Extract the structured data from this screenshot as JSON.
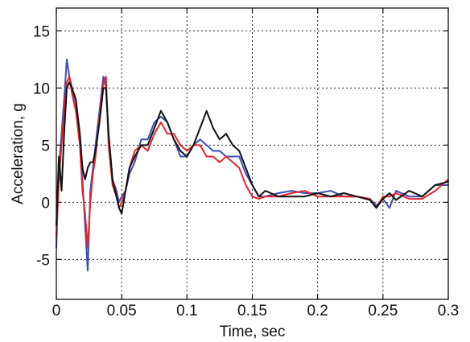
{
  "chart_data": {
    "type": "line",
    "title": "",
    "xlabel": "Time, sec",
    "ylabel": "Acceleration, g",
    "xlim": [
      0,
      0.3
    ],
    "ylim": [
      -8.5,
      17
    ],
    "xticks": [
      0,
      0.05,
      0.1,
      0.15,
      0.2,
      0.25,
      0.3
    ],
    "xtick_labels": [
      "0",
      "0.05",
      "0.1",
      "0.15",
      "0.2",
      "0.25",
      "0.3"
    ],
    "yticks": [
      -5,
      0,
      5,
      10,
      15
    ],
    "ytick_labels": [
      "-5",
      "0",
      "5",
      "10",
      "15"
    ],
    "grid": true,
    "grid_style": "dotted",
    "legend": "none",
    "series": [
      {
        "color": "#3a4fb8",
        "x": [
          0,
          0.002,
          0.004,
          0.006,
          0.008,
          0.01,
          0.012,
          0.015,
          0.018,
          0.02,
          0.022,
          0.024,
          0.026,
          0.028,
          0.03,
          0.033,
          0.036,
          0.038,
          0.04,
          0.043,
          0.046,
          0.048,
          0.05,
          0.053,
          0.056,
          0.06,
          0.065,
          0.07,
          0.075,
          0.08,
          0.085,
          0.09,
          0.095,
          0.1,
          0.105,
          0.11,
          0.115,
          0.12,
          0.125,
          0.13,
          0.135,
          0.14,
          0.145,
          0.15,
          0.155,
          0.16,
          0.17,
          0.18,
          0.19,
          0.2,
          0.21,
          0.22,
          0.23,
          0.24,
          0.245,
          0.25,
          0.255,
          0.26,
          0.27,
          0.28,
          0.29,
          0.3
        ],
        "y": [
          -4,
          3,
          6,
          9,
          12.5,
          11,
          10,
          8,
          6,
          2,
          -2,
          -6,
          1,
          3,
          5,
          8,
          11,
          10,
          6,
          2,
          1,
          0,
          0.5,
          1,
          2.5,
          3.5,
          5.5,
          5.5,
          7,
          7.5,
          7,
          5.5,
          4,
          4,
          5,
          5.5,
          5,
          4.5,
          4.5,
          4,
          4,
          4,
          2.5,
          1.5,
          0.5,
          0.5,
          0.8,
          1,
          0.8,
          0.8,
          1,
          0.5,
          0.5,
          0.3,
          -0.3,
          0.3,
          -0.5,
          1,
          0.5,
          0.5,
          1.5,
          1.5
        ]
      },
      {
        "color": "#e8222b",
        "x": [
          0,
          0.002,
          0.004,
          0.006,
          0.008,
          0.01,
          0.012,
          0.015,
          0.018,
          0.02,
          0.022,
          0.024,
          0.026,
          0.028,
          0.03,
          0.033,
          0.036,
          0.038,
          0.04,
          0.043,
          0.046,
          0.048,
          0.05,
          0.053,
          0.056,
          0.06,
          0.065,
          0.07,
          0.075,
          0.08,
          0.085,
          0.09,
          0.095,
          0.1,
          0.105,
          0.11,
          0.115,
          0.12,
          0.125,
          0.13,
          0.135,
          0.14,
          0.145,
          0.15,
          0.155,
          0.16,
          0.17,
          0.18,
          0.19,
          0.2,
          0.21,
          0.22,
          0.23,
          0.24,
          0.245,
          0.25,
          0.255,
          0.26,
          0.27,
          0.28,
          0.29,
          0.3
        ],
        "y": [
          -3,
          2,
          5,
          8,
          10.5,
          11,
          9.5,
          8,
          5,
          1,
          -1,
          -4,
          0,
          2.5,
          4,
          7.5,
          10.5,
          11,
          5,
          1.5,
          0.5,
          -0.5,
          0,
          1,
          3,
          4.5,
          5,
          4.5,
          6,
          7,
          6,
          6,
          5,
          4.5,
          5,
          5,
          4,
          4,
          3.5,
          4,
          3.5,
          3,
          1.5,
          0.5,
          0.3,
          0.5,
          0.5,
          0.8,
          1,
          0.5,
          0.5,
          0.5,
          0.5,
          0.3,
          -0.5,
          0.5,
          0.5,
          0.8,
          0.3,
          0.3,
          1,
          2
        ]
      },
      {
        "color": "#111111",
        "x": [
          0,
          0.002,
          0.004,
          0.006,
          0.008,
          0.01,
          0.012,
          0.015,
          0.018,
          0.02,
          0.022,
          0.024,
          0.026,
          0.028,
          0.03,
          0.033,
          0.036,
          0.038,
          0.04,
          0.043,
          0.046,
          0.048,
          0.05,
          0.053,
          0.056,
          0.06,
          0.065,
          0.07,
          0.075,
          0.08,
          0.085,
          0.09,
          0.095,
          0.1,
          0.105,
          0.11,
          0.115,
          0.12,
          0.125,
          0.13,
          0.135,
          0.14,
          0.145,
          0.15,
          0.155,
          0.16,
          0.17,
          0.18,
          0.19,
          0.2,
          0.21,
          0.22,
          0.23,
          0.24,
          0.245,
          0.25,
          0.255,
          0.26,
          0.27,
          0.28,
          0.29,
          0.3
        ],
        "y": [
          -2,
          4,
          1,
          6,
          10,
          10.5,
          10,
          9,
          6,
          3,
          2,
          3,
          3.5,
          3.5,
          4.5,
          7,
          10,
          10,
          6,
          2,
          0.5,
          -0.5,
          -1,
          1,
          3,
          4,
          5,
          5,
          6.5,
          8,
          7,
          5.5,
          4.5,
          4,
          5,
          6.5,
          8,
          6.5,
          5.5,
          6,
          5,
          4.5,
          3,
          1.5,
          0.5,
          1,
          0.5,
          0.5,
          0.5,
          0.8,
          0.5,
          0.8,
          0.5,
          0.2,
          -0.5,
          0.3,
          0.8,
          0.2,
          1,
          0.5,
          1.5,
          1.8
        ]
      }
    ]
  }
}
